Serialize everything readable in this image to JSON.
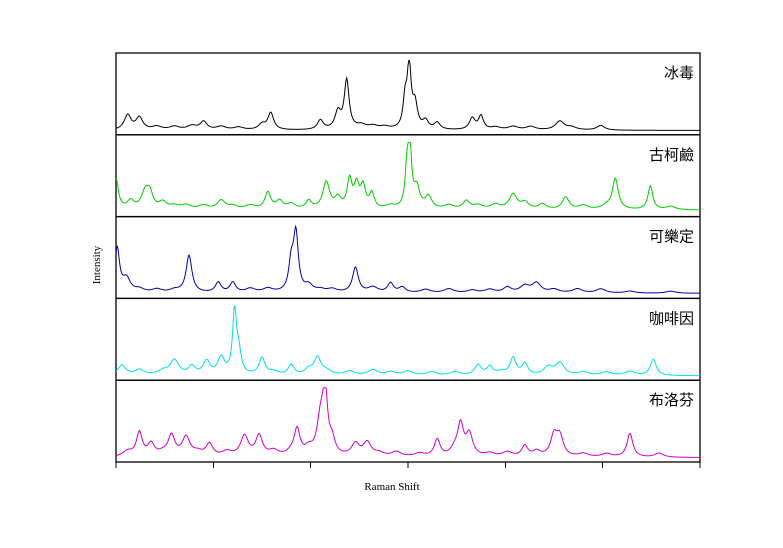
{
  "chart_data": {
    "type": "line",
    "xlabel": "Raman Shift",
    "ylabel": "Intensity",
    "xlim": [
      0,
      100
    ],
    "grid": false,
    "legend": "none",
    "x_ticks": [
      0,
      16.7,
      33.3,
      50,
      66.7,
      83.3,
      100
    ],
    "panels": [
      {
        "label": "冰毒",
        "color": "#000000",
        "baseline": 0.02,
        "peaks": [
          [
            2,
            0.22,
            0.7
          ],
          [
            4,
            0.18,
            0.7
          ],
          [
            7,
            0.05,
            1
          ],
          [
            10,
            0.05,
            1
          ],
          [
            13,
            0.06,
            1
          ],
          [
            15,
            0.12,
            0.7
          ],
          [
            18,
            0.05,
            1
          ],
          [
            21,
            0.04,
            1
          ],
          [
            25,
            0.08,
            0.7
          ],
          [
            26.5,
            0.25,
            0.6
          ],
          [
            35,
            0.14,
            0.6
          ],
          [
            38,
            0.25,
            0.6
          ],
          [
            39.5,
            0.72,
            0.5
          ],
          [
            42,
            0.06,
            1
          ],
          [
            44,
            0.05,
            1
          ],
          [
            46,
            0.04,
            1
          ],
          [
            49.5,
            0.4,
            0.4
          ],
          [
            50.2,
            0.92,
            0.4
          ],
          [
            51.2,
            0.35,
            0.5
          ],
          [
            53,
            0.12,
            0.6
          ],
          [
            55,
            0.1,
            0.6
          ],
          [
            61,
            0.17,
            0.6
          ],
          [
            62.5,
            0.2,
            0.5
          ],
          [
            65,
            0.04,
            1
          ],
          [
            68,
            0.05,
            1
          ],
          [
            71,
            0.05,
            1
          ],
          [
            76,
            0.13,
            0.9
          ],
          [
            78,
            0.04,
            1
          ],
          [
            83,
            0.07,
            0.8
          ]
        ]
      },
      {
        "label": "古柯鹼",
        "color": "#00cc00",
        "baseline": 0.05,
        "peaks": [
          [
            0,
            0.45,
            0.5
          ],
          [
            2.5,
            0.12,
            0.7
          ],
          [
            5,
            0.25,
            0.8
          ],
          [
            5.8,
            0.2,
            0.6
          ],
          [
            8,
            0.1,
            0.8
          ],
          [
            10,
            0.05,
            1
          ],
          [
            12,
            0.06,
            1
          ],
          [
            15,
            0.06,
            1
          ],
          [
            18,
            0.13,
            0.8
          ],
          [
            20,
            0.05,
            1
          ],
          [
            23,
            0.06,
            1
          ],
          [
            26,
            0.25,
            0.6
          ],
          [
            28,
            0.12,
            0.7
          ],
          [
            30,
            0.08,
            0.8
          ],
          [
            33,
            0.12,
            0.6
          ],
          [
            36,
            0.4,
            0.7
          ],
          [
            38,
            0.15,
            0.6
          ],
          [
            40,
            0.42,
            0.5
          ],
          [
            41.2,
            0.33,
            0.5
          ],
          [
            42.3,
            0.32,
            0.5
          ],
          [
            43.8,
            0.22,
            0.5
          ],
          [
            47,
            0.05,
            1
          ],
          [
            49.8,
            0.5,
            0.35
          ],
          [
            50.3,
            0.95,
            0.35
          ],
          [
            51.5,
            0.3,
            0.6
          ],
          [
            53.5,
            0.18,
            0.7
          ],
          [
            57,
            0.06,
            1
          ],
          [
            60,
            0.12,
            0.7
          ],
          [
            62,
            0.06,
            1
          ],
          [
            65,
            0.07,
            1
          ],
          [
            68,
            0.22,
            0.8
          ],
          [
            70,
            0.1,
            0.8
          ],
          [
            73,
            0.08,
            0.8
          ],
          [
            77,
            0.18,
            0.7
          ],
          [
            80,
            0.06,
            1
          ],
          [
            84,
            0.05,
            1
          ],
          [
            85.5,
            0.45,
            0.6
          ],
          [
            91.5,
            0.35,
            0.5
          ],
          [
            95,
            0.05,
            1
          ]
        ]
      },
      {
        "label": "可樂定",
        "color": "#0000aa",
        "baseline": 0.03,
        "peaks": [
          [
            0.2,
            0.65,
            0.5
          ],
          [
            1.8,
            0.2,
            0.8
          ],
          [
            4,
            0.05,
            1
          ],
          [
            7,
            0.05,
            1
          ],
          [
            10,
            0.04,
            1
          ],
          [
            12.5,
            0.55,
            0.6
          ],
          [
            17.5,
            0.15,
            0.6
          ],
          [
            20,
            0.15,
            0.6
          ],
          [
            23,
            0.06,
            1
          ],
          [
            26,
            0.06,
            1
          ],
          [
            30,
            0.4,
            0.5
          ],
          [
            30.8,
            0.85,
            0.5
          ],
          [
            33,
            0.1,
            0.8
          ],
          [
            35,
            0.04,
            1
          ],
          [
            37,
            0.05,
            1
          ],
          [
            41,
            0.37,
            0.6
          ],
          [
            44,
            0.08,
            1
          ],
          [
            47,
            0.14,
            0.6
          ],
          [
            49,
            0.08,
            0.7
          ],
          [
            53,
            0.05,
            1
          ],
          [
            57,
            0.06,
            1
          ],
          [
            61,
            0.04,
            1
          ],
          [
            64,
            0.05,
            1
          ],
          [
            67,
            0.08,
            0.8
          ],
          [
            70,
            0.1,
            1
          ],
          [
            72,
            0.14,
            0.9
          ],
          [
            75,
            0.05,
            1
          ],
          [
            79,
            0.06,
            1
          ],
          [
            83,
            0.06,
            1
          ],
          [
            88,
            0.03,
            1
          ],
          [
            95,
            0.03,
            1
          ]
        ]
      },
      {
        "label": "咖啡因",
        "color": "#00e0e0",
        "baseline": 0.02,
        "peaks": [
          [
            1,
            0.15,
            0.8
          ],
          [
            4,
            0.08,
            1
          ],
          [
            8,
            0.06,
            1
          ],
          [
            10,
            0.22,
            0.9
          ],
          [
            13,
            0.12,
            0.7
          ],
          [
            15.5,
            0.2,
            0.7
          ],
          [
            18,
            0.25,
            0.7
          ],
          [
            20.3,
            0.92,
            0.4
          ],
          [
            21,
            0.3,
            0.5
          ],
          [
            25,
            0.25,
            0.6
          ],
          [
            27,
            0.05,
            1
          ],
          [
            30,
            0.15,
            0.6
          ],
          [
            33,
            0.08,
            0.8
          ],
          [
            34.5,
            0.25,
            0.7
          ],
          [
            36,
            0.06,
            1
          ],
          [
            40,
            0.06,
            1
          ],
          [
            44,
            0.08,
            1
          ],
          [
            47,
            0.05,
            1
          ],
          [
            50,
            0.06,
            1
          ],
          [
            54,
            0.05,
            1
          ],
          [
            58,
            0.05,
            1
          ],
          [
            62,
            0.15,
            0.7
          ],
          [
            64,
            0.12,
            0.6
          ],
          [
            66,
            0.05,
            1
          ],
          [
            68,
            0.25,
            0.6
          ],
          [
            70,
            0.17,
            0.6
          ],
          [
            74,
            0.12,
            0.9
          ],
          [
            76,
            0.18,
            0.9
          ],
          [
            80,
            0.05,
            1
          ],
          [
            84,
            0.05,
            1
          ],
          [
            88,
            0.06,
            1
          ],
          [
            92,
            0.24,
            0.6
          ]
        ]
      },
      {
        "label": "布洛芬",
        "color": "#cc00cc",
        "baseline": 0.02,
        "peaks": [
          [
            2,
            0.08,
            1
          ],
          [
            4,
            0.35,
            0.6
          ],
          [
            6,
            0.18,
            0.7
          ],
          [
            8,
            0.05,
            1
          ],
          [
            9.5,
            0.3,
            0.7
          ],
          [
            12,
            0.28,
            0.8
          ],
          [
            14,
            0.06,
            1
          ],
          [
            16,
            0.18,
            0.7
          ],
          [
            19,
            0.07,
            1
          ],
          [
            22,
            0.3,
            0.8
          ],
          [
            24.5,
            0.3,
            0.7
          ],
          [
            27,
            0.08,
            1
          ],
          [
            30,
            0.05,
            1
          ],
          [
            31,
            0.38,
            0.6
          ],
          [
            33,
            0.1,
            0.8
          ],
          [
            35,
            0.5,
            0.7
          ],
          [
            35.8,
            0.9,
            0.5
          ],
          [
            37,
            0.2,
            0.6
          ],
          [
            41,
            0.18,
            0.8
          ],
          [
            43,
            0.2,
            0.8
          ],
          [
            45,
            0.05,
            1
          ],
          [
            48,
            0.07,
            1
          ],
          [
            52,
            0.05,
            1
          ],
          [
            55,
            0.25,
            0.6
          ],
          [
            58,
            0.1,
            0.8
          ],
          [
            59,
            0.45,
            0.6
          ],
          [
            60.5,
            0.32,
            0.7
          ],
          [
            64,
            0.05,
            1
          ],
          [
            67,
            0.07,
            1
          ],
          [
            70,
            0.16,
            0.6
          ],
          [
            72,
            0.08,
            0.8
          ],
          [
            75,
            0.3,
            0.7
          ],
          [
            76,
            0.28,
            0.7
          ],
          [
            80,
            0.05,
            1
          ],
          [
            84,
            0.05,
            1
          ],
          [
            88,
            0.35,
            0.6
          ],
          [
            93,
            0.06,
            0.9
          ]
        ]
      }
    ]
  }
}
